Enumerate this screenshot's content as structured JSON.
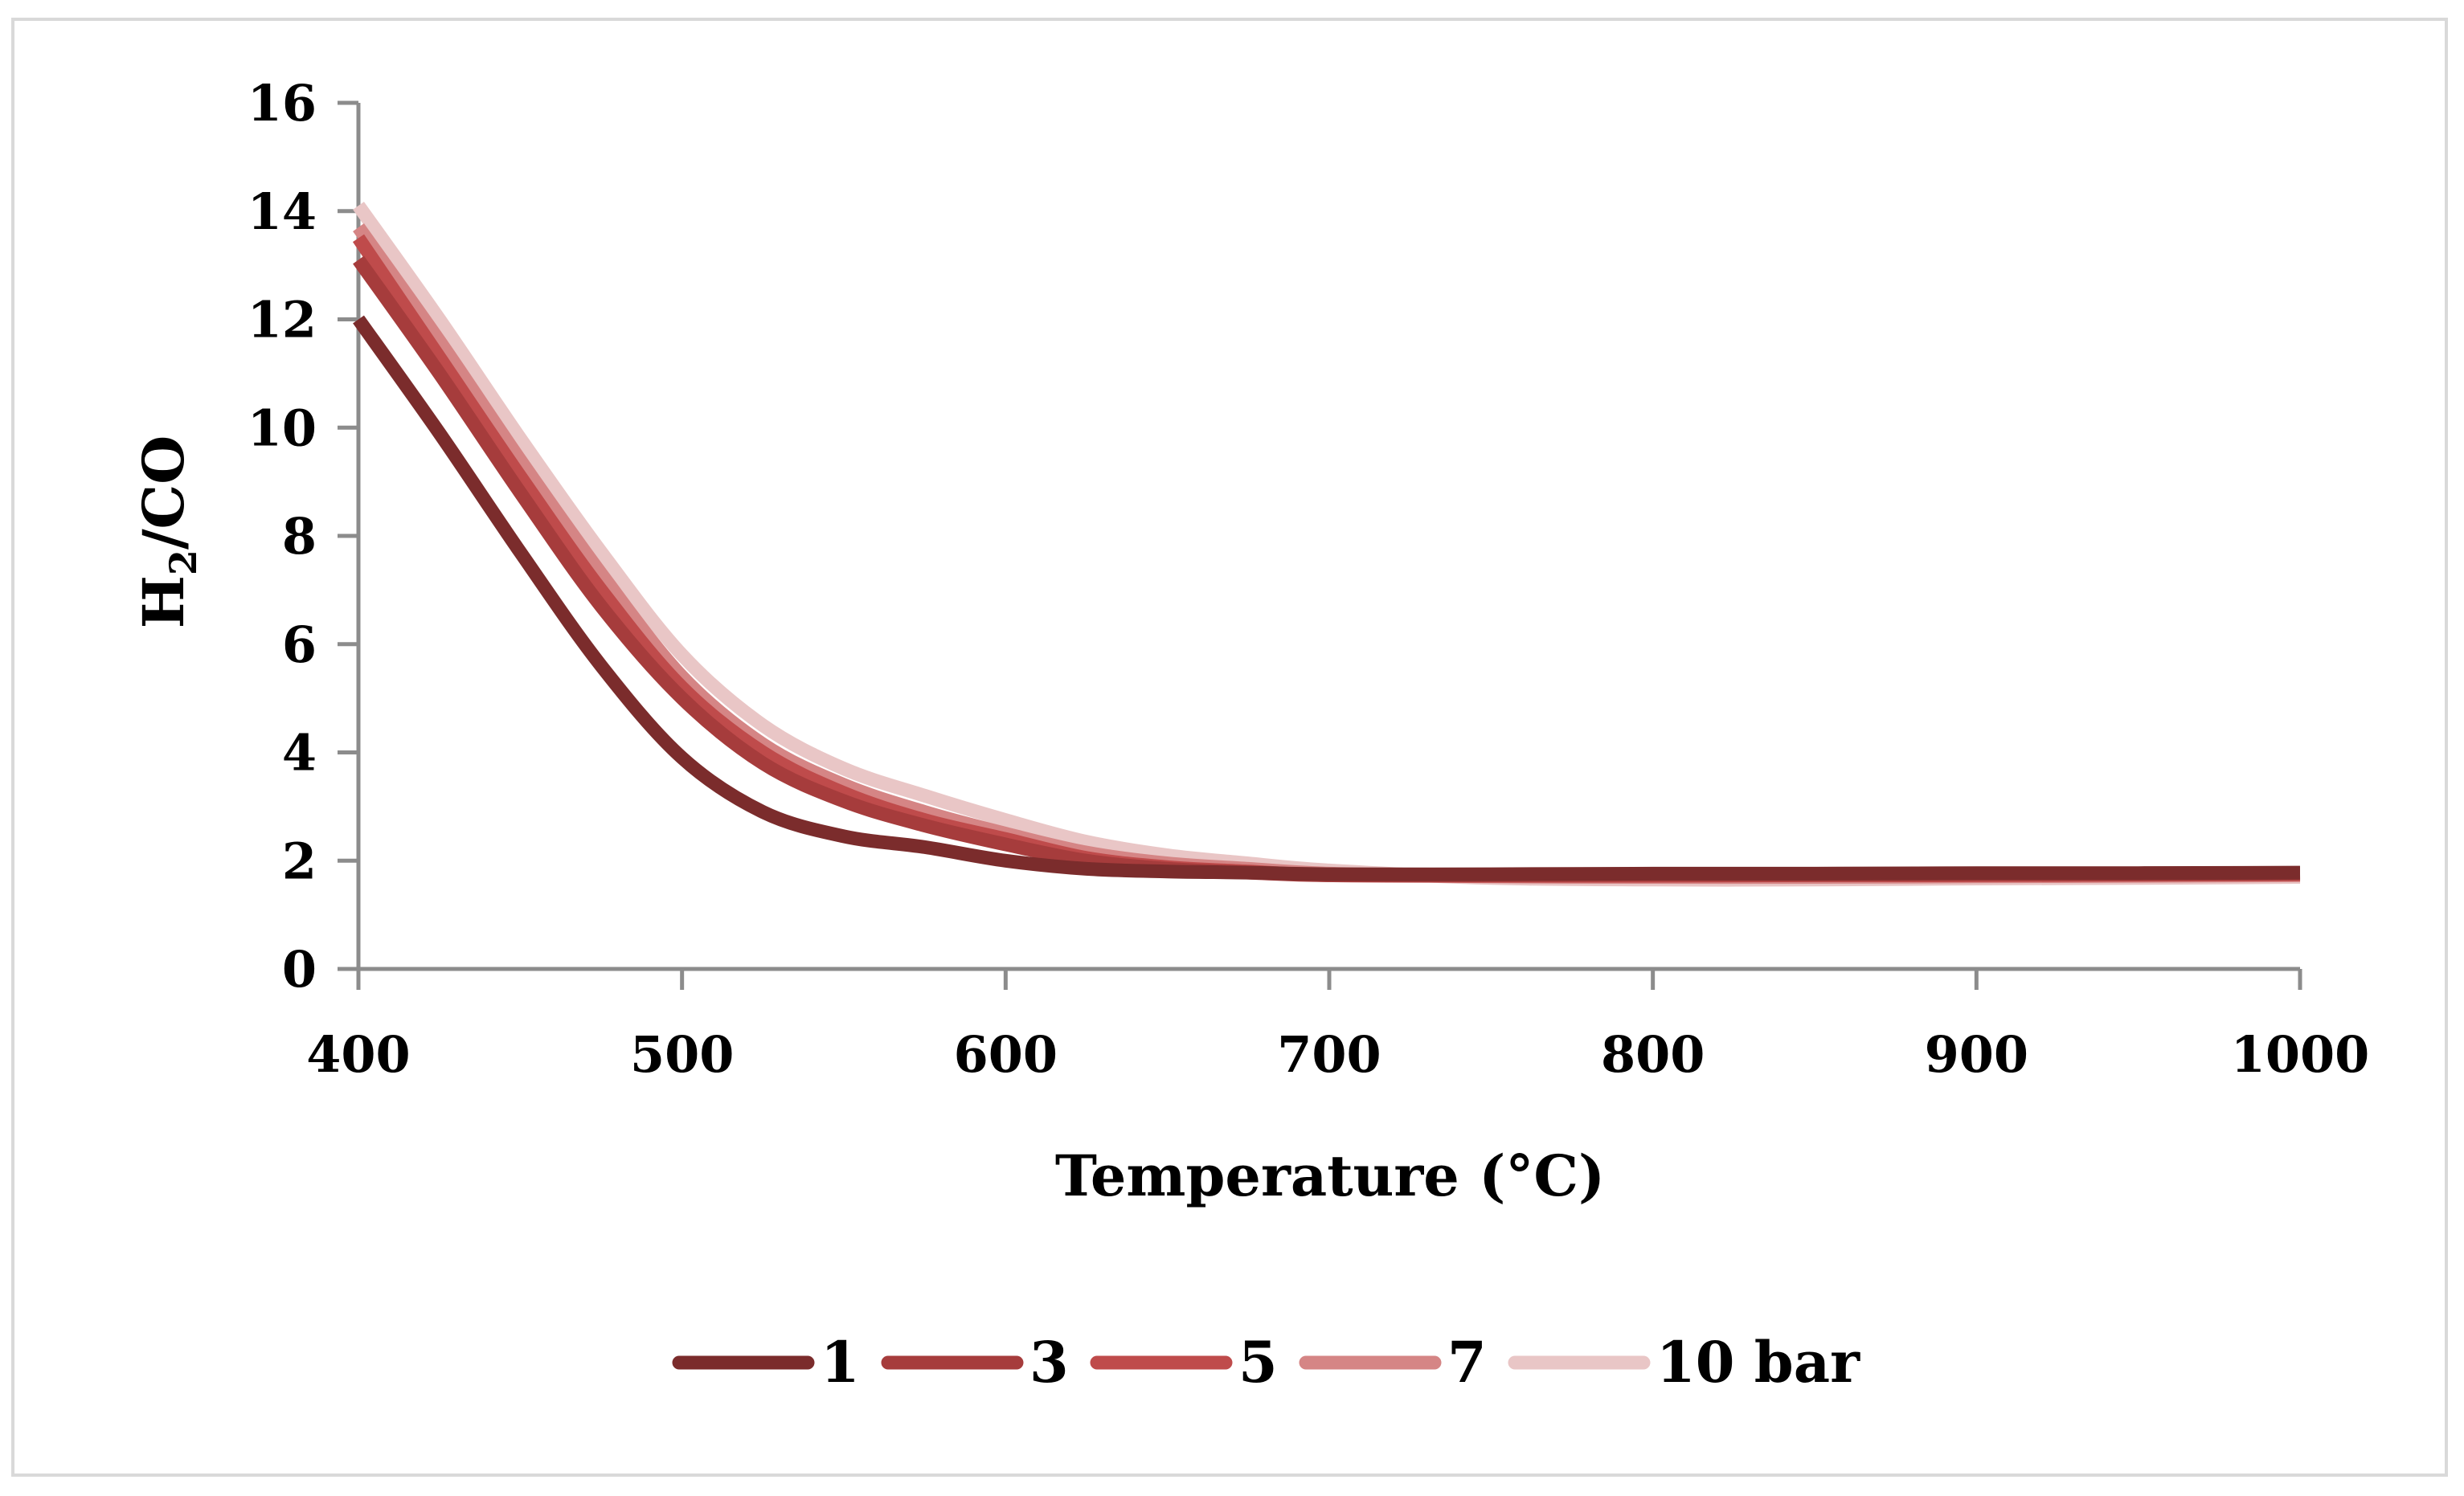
{
  "chart_data": {
    "type": "line",
    "title": "",
    "xlabel": "Temperature (°C)",
    "ylabel": {
      "main": "H",
      "subscript": "2",
      "tail": "/CO"
    },
    "xlim": [
      400,
      1000
    ],
    "ylim": [
      0,
      16
    ],
    "xticks": [
      "400",
      "500",
      "600",
      "700",
      "800",
      "900",
      "1000"
    ],
    "yticks": [
      "0",
      "2",
      "4",
      "6",
      "8",
      "10",
      "12",
      "14",
      "16"
    ],
    "grid": false,
    "legend_position": "bottom",
    "x": [
      400,
      425,
      450,
      475,
      500,
      525,
      550,
      575,
      600,
      625,
      650,
      675,
      700,
      750,
      800,
      850,
      900,
      950,
      1000
    ],
    "series": [
      {
        "name": "1",
        "color": "#7b2c2c",
        "values": [
          12.0,
          9.9,
          7.7,
          5.6,
          3.9,
          2.9,
          2.45,
          2.25,
          2.0,
          1.85,
          1.8,
          1.78,
          1.75,
          1.75,
          1.76,
          1.76,
          1.77,
          1.77,
          1.78
        ]
      },
      {
        "name": "3",
        "color": "#a63c3c",
        "values": [
          13.1,
          11.0,
          8.8,
          6.7,
          5.0,
          3.8,
          3.1,
          2.65,
          2.3,
          2.0,
          1.85,
          1.78,
          1.73,
          1.73,
          1.74,
          1.74,
          1.75,
          1.75,
          1.76
        ]
      },
      {
        "name": "5",
        "color": "#bf4b4b",
        "values": [
          13.5,
          11.3,
          9.1,
          7.0,
          5.2,
          4.0,
          3.25,
          2.75,
          2.4,
          2.05,
          1.88,
          1.8,
          1.73,
          1.72,
          1.72,
          1.73,
          1.73,
          1.74,
          1.75
        ]
      },
      {
        "name": "7",
        "color": "#d58585",
        "values": [
          13.7,
          11.6,
          9.4,
          7.3,
          5.4,
          4.15,
          3.4,
          2.9,
          2.5,
          2.15,
          1.95,
          1.85,
          1.76,
          1.71,
          1.7,
          1.7,
          1.71,
          1.72,
          1.73
        ]
      },
      {
        "name": "10 bar",
        "color": "#e9c6c6",
        "values": [
          14.1,
          12.0,
          9.8,
          7.7,
          5.8,
          4.5,
          3.7,
          3.2,
          2.75,
          2.35,
          2.1,
          1.95,
          1.82,
          1.68,
          1.65,
          1.65,
          1.67,
          1.68,
          1.7
        ]
      }
    ]
  }
}
